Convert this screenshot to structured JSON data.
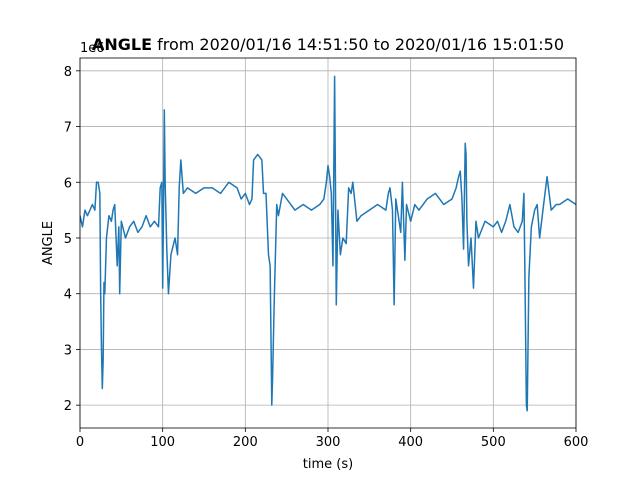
{
  "chart_data": {
    "type": "line",
    "title_parts": [
      "ANGLE",
      "from 2020/01/16 14:51:50 to 2020/01/16 15:01:50"
    ],
    "y_offset_label": "1e6",
    "xlabel": "time (s)",
    "ylabel": "ANGLE",
    "color": "#1f77b4",
    "grid": true,
    "xlim": [
      0,
      600
    ],
    "xticks": [
      0,
      100,
      200,
      300,
      400,
      500,
      600
    ],
    "ylim": [
      1.59,
      8.23
    ],
    "yticks": [
      2,
      3,
      4,
      5,
      6,
      7,
      8
    ],
    "x": [
      0,
      3,
      6,
      9,
      12,
      15,
      18,
      20,
      22,
      24,
      25,
      26,
      27,
      28,
      29,
      30,
      32,
      35,
      38,
      40,
      42,
      45,
      47,
      48,
      50,
      55,
      60,
      65,
      70,
      75,
      80,
      85,
      90,
      95,
      97,
      99,
      100,
      101,
      102,
      103,
      105,
      107,
      110,
      115,
      118,
      120,
      122,
      125,
      130,
      140,
      150,
      160,
      170,
      180,
      190,
      195,
      200,
      205,
      208,
      210,
      215,
      220,
      222,
      225,
      228,
      230,
      232,
      233,
      235,
      238,
      240,
      245,
      250,
      260,
      270,
      280,
      290,
      295,
      298,
      300,
      302,
      304,
      306,
      308,
      309,
      310,
      312,
      315,
      318,
      322,
      325,
      328,
      330,
      335,
      340,
      350,
      360,
      370,
      373,
      375,
      378,
      380,
      382,
      385,
      388,
      390,
      393,
      395,
      400,
      405,
      410,
      420,
      430,
      440,
      450,
      455,
      458,
      460,
      462,
      464,
      466,
      467,
      468,
      470,
      473,
      476,
      479,
      482,
      490,
      500,
      505,
      510,
      515,
      520,
      525,
      530,
      535,
      537,
      538,
      540,
      541,
      543,
      546,
      550,
      553,
      556,
      560,
      565,
      570,
      576,
      580,
      590,
      600
    ],
    "values": [
      5.4,
      5.2,
      5.5,
      5.4,
      5.5,
      5.6,
      5.5,
      6.0,
      6.0,
      5.8,
      4.0,
      3.0,
      2.3,
      2.8,
      4.2,
      4.0,
      5.0,
      5.4,
      5.3,
      5.5,
      5.6,
      4.5,
      5.2,
      4.0,
      5.3,
      5.0,
      5.2,
      5.3,
      5.1,
      5.2,
      5.4,
      5.2,
      5.3,
      5.2,
      5.9,
      6.0,
      4.1,
      5.5,
      7.3,
      6.0,
      4.8,
      4.0,
      4.7,
      5.0,
      4.7,
      5.9,
      6.4,
      5.8,
      5.9,
      5.8,
      5.9,
      5.9,
      5.8,
      6.0,
      5.9,
      5.7,
      5.8,
      5.6,
      5.7,
      6.4,
      6.5,
      6.4,
      5.8,
      5.8,
      4.7,
      4.5,
      2.0,
      2.5,
      3.9,
      5.6,
      5.4,
      5.8,
      5.7,
      5.5,
      5.6,
      5.5,
      5.6,
      5.7,
      6.0,
      6.3,
      6.1,
      5.8,
      4.5,
      7.9,
      6.0,
      3.8,
      5.5,
      4.7,
      5.0,
      4.9,
      5.9,
      5.8,
      6.0,
      5.3,
      5.4,
      5.5,
      5.6,
      5.5,
      5.8,
      5.9,
      5.5,
      3.8,
      5.7,
      5.4,
      5.1,
      6.0,
      4.6,
      5.6,
      5.3,
      5.6,
      5.5,
      5.7,
      5.8,
      5.6,
      5.7,
      5.9,
      6.1,
      6.2,
      5.7,
      4.8,
      6.7,
      6.5,
      5.3,
      4.5,
      5.0,
      4.1,
      5.3,
      5.0,
      5.3,
      5.2,
      5.3,
      5.1,
      5.3,
      5.6,
      5.2,
      5.1,
      5.3,
      5.8,
      4.6,
      2.0,
      1.9,
      4.3,
      5.2,
      5.5,
      5.6,
      5.0,
      5.5,
      6.1,
      5.5,
      5.6,
      5.6,
      5.7,
      5.6
    ]
  }
}
